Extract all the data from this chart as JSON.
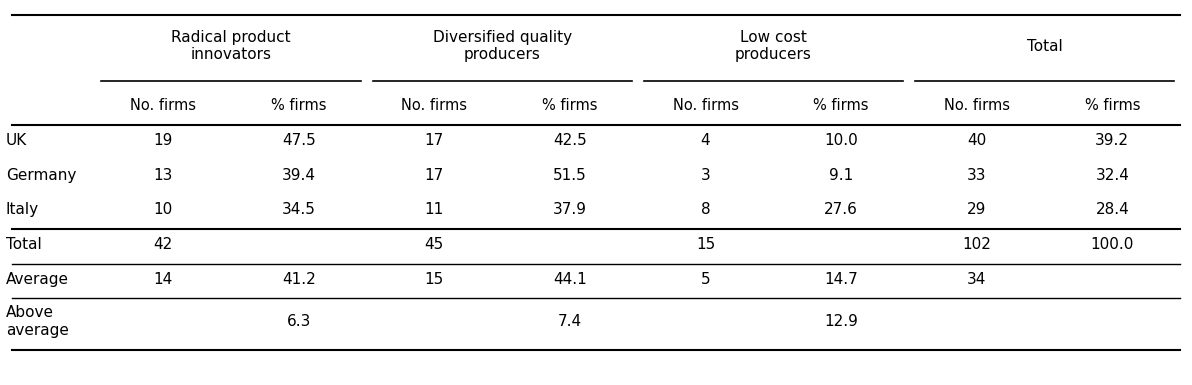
{
  "col_group_headers": [
    {
      "text": "Radical product\ninnovators",
      "col_span": [
        1,
        2
      ]
    },
    {
      "text": "Diversified quality\nproducers",
      "col_span": [
        3,
        4
      ]
    },
    {
      "text": "Low cost\nproducers",
      "col_span": [
        5,
        6
      ]
    },
    {
      "text": "Total",
      "col_span": [
        7,
        8
      ]
    }
  ],
  "sub_headers": [
    "No. firms",
    "% firms",
    "No. firms",
    "% firms",
    "No. firms",
    "% firms",
    "No. firms",
    "% firms"
  ],
  "row_labels": [
    "UK",
    "Germany",
    "Italy",
    "Total",
    "Average",
    "Above\naverage"
  ],
  "data": [
    [
      "19",
      "47.5",
      "17",
      "42.5",
      "4",
      "10.0",
      "40",
      "39.2"
    ],
    [
      "13",
      "39.4",
      "17",
      "51.5",
      "3",
      "9.1",
      "33",
      "32.4"
    ],
    [
      "10",
      "34.5",
      "11",
      "37.9",
      "8",
      "27.6",
      "29",
      "28.4"
    ],
    [
      "42",
      "",
      "45",
      "",
      "15",
      "",
      "102",
      "100.0"
    ],
    [
      "14",
      "41.2",
      "15",
      "44.1",
      "5",
      "14.7",
      "34",
      ""
    ],
    [
      "",
      "6.3",
      "",
      "7.4",
      "",
      "12.9",
      "",
      ""
    ]
  ],
  "bg_color": "#ffffff",
  "text_color": "#000000",
  "line_color": "#000000",
  "font_size": 11,
  "header_font_size": 11
}
